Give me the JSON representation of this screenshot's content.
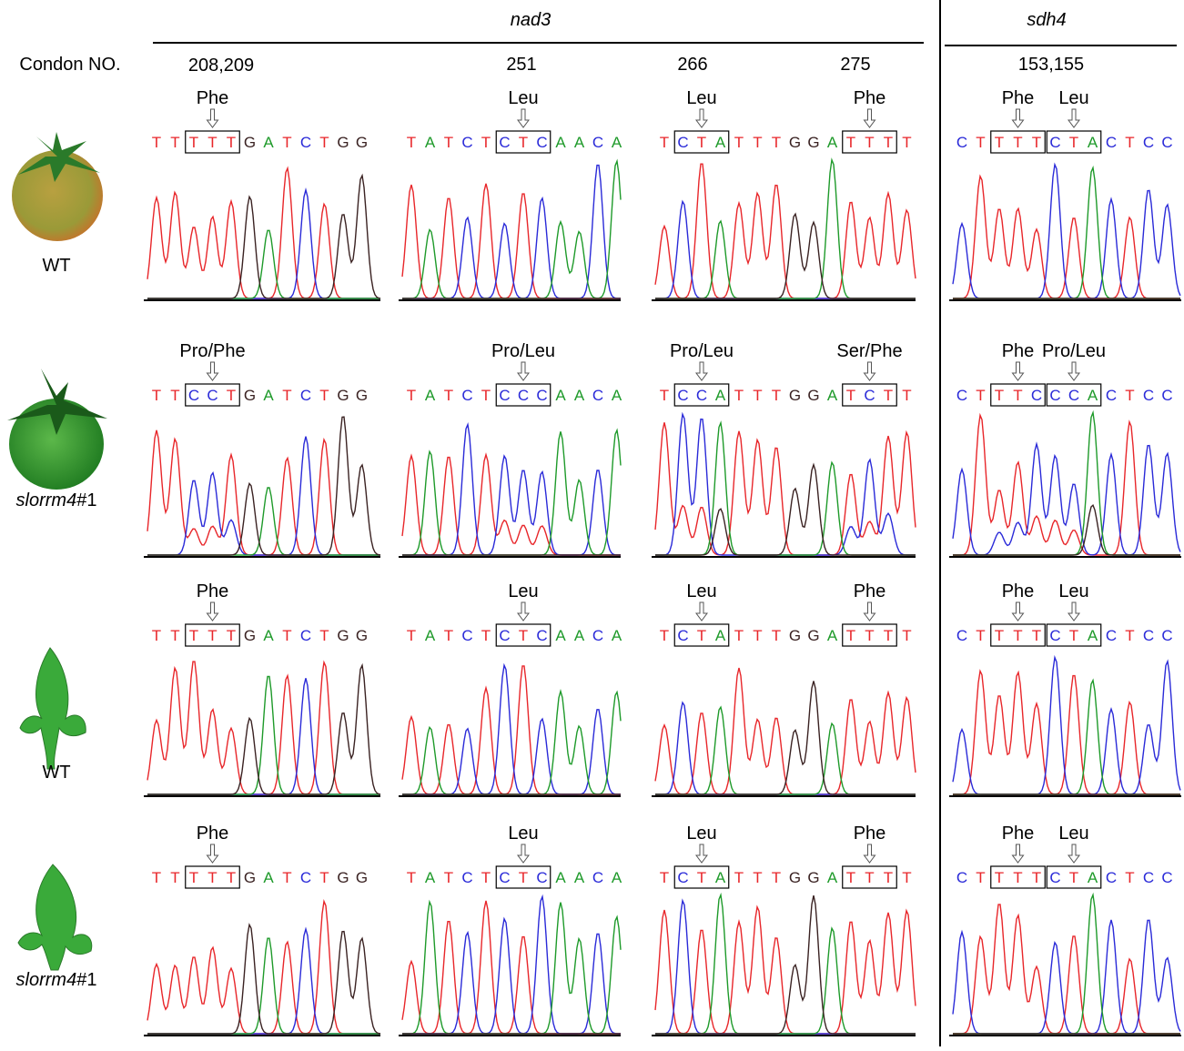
{
  "header": {
    "gene_left": "nad3",
    "gene_right": "sdh4",
    "codon_label": "Condon NO.",
    "codon_numbers": [
      "208,209",
      "251",
      "266",
      "275",
      "153,155"
    ]
  },
  "base_colors": {
    "T": "#e8262a",
    "C": "#2a2ad8",
    "A": "#1e9a2a",
    "G": "#3a2222"
  },
  "rows": [
    {
      "name": "WT",
      "panels": [
        {
          "segments": [
            {
              "text": "TT"
            },
            {
              "text": "TTT",
              "codon": "Phe"
            },
            {
              "text": "GATCTGG"
            }
          ]
        },
        {
          "segments": [
            {
              "text": "TATCT"
            },
            {
              "text": "CTC",
              "codon": "Leu"
            },
            {
              "text": "AACA"
            }
          ]
        },
        {
          "segments": [
            {
              "text": "T"
            },
            {
              "text": "CTA",
              "codon": "Leu"
            },
            {
              "text": "TTTGGA"
            },
            {
              "text": "TTT",
              "codon": "Phe"
            },
            {
              "text": "T"
            }
          ]
        },
        {
          "segments": [
            {
              "text": "CT"
            },
            {
              "text": "TTT",
              "codon": "Phe"
            },
            {
              "text": "CTA",
              "codon": "Leu"
            },
            {
              "text": "CTCC"
            }
          ]
        }
      ]
    },
    {
      "name": "slorrm4",
      "suffix": "#1",
      "italic": true,
      "panels": [
        {
          "segments": [
            {
              "text": "TT"
            },
            {
              "text": "CCT",
              "codon": "Pro/Phe"
            },
            {
              "text": "GATCTGG"
            }
          ]
        },
        {
          "segments": [
            {
              "text": "TATCT"
            },
            {
              "text": "CCC",
              "codon": "Pro/Leu"
            },
            {
              "text": "AACA"
            }
          ]
        },
        {
          "segments": [
            {
              "text": "T"
            },
            {
              "text": "CCA",
              "codon": "Pro/Leu"
            },
            {
              "text": "TTTGGA"
            },
            {
              "text": "TCT",
              "codon": "Ser/Phe"
            },
            {
              "text": "T"
            }
          ]
        },
        {
          "segments": [
            {
              "text": "CT"
            },
            {
              "text": "TTC",
              "codon": "Phe"
            },
            {
              "text": "CCA",
              "codon": "Pro/Leu"
            },
            {
              "text": "CTCC"
            }
          ]
        }
      ]
    },
    {
      "name": "WT",
      "panels": [
        {
          "segments": [
            {
              "text": "TT"
            },
            {
              "text": "TTT",
              "codon": "Phe"
            },
            {
              "text": "GATCTGG"
            }
          ]
        },
        {
          "segments": [
            {
              "text": "TATCT"
            },
            {
              "text": "CTC",
              "codon": "Leu"
            },
            {
              "text": "AACA"
            }
          ]
        },
        {
          "segments": [
            {
              "text": "T"
            },
            {
              "text": "CTA",
              "codon": "Leu"
            },
            {
              "text": "TTTGGA"
            },
            {
              "text": "TTT",
              "codon": "Phe"
            },
            {
              "text": "T"
            }
          ]
        },
        {
          "segments": [
            {
              "text": "CT"
            },
            {
              "text": "TTT",
              "codon": "Phe"
            },
            {
              "text": "CTA",
              "codon": "Leu"
            },
            {
              "text": "CTCC"
            }
          ]
        }
      ]
    },
    {
      "name": "slorrm4",
      "suffix": "#1",
      "italic": true,
      "panels": [
        {
          "segments": [
            {
              "text": "TT"
            },
            {
              "text": "TTT",
              "codon": "Phe"
            },
            {
              "text": "GATCTGG"
            }
          ]
        },
        {
          "segments": [
            {
              "text": "TATCT"
            },
            {
              "text": "CTC",
              "codon": "Leu"
            },
            {
              "text": "AACA"
            }
          ]
        },
        {
          "segments": [
            {
              "text": "T"
            },
            {
              "text": "CTA",
              "codon": "Leu"
            },
            {
              "text": "TTTGGA"
            },
            {
              "text": "TTT",
              "codon": "Phe"
            },
            {
              "text": "T"
            }
          ]
        },
        {
          "segments": [
            {
              "text": "CT"
            },
            {
              "text": "TTT",
              "codon": "Phe"
            },
            {
              "text": "CTA",
              "codon": "Leu"
            },
            {
              "text": "CTCC"
            }
          ]
        }
      ]
    }
  ]
}
